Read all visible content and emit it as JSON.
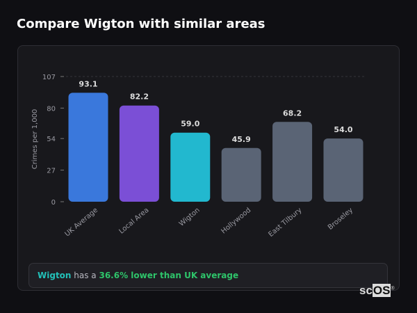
{
  "title": "Compare Wigton with similar areas",
  "chart_data": {
    "type": "bar",
    "categories": [
      "UK Average",
      "Local Area",
      "Wigton",
      "Hollywood",
      "East Tilbury",
      "Broseley"
    ],
    "values": [
      93.1,
      82.2,
      59.0,
      45.9,
      68.2,
      54.0
    ],
    "data_labels": [
      "93.1",
      "82.2",
      "59.0",
      "45.9",
      "68.2",
      "54.0"
    ],
    "colors": [
      "#3a78dc",
      "#7b4fd6",
      "#22b8cf",
      "#5a6475",
      "#5a6475",
      "#5a6475"
    ],
    "ylabel": "Crimes per 1,000",
    "xlabel": "",
    "ylim": [
      0,
      107
    ],
    "yticks": [
      0,
      27,
      54,
      80,
      107
    ],
    "grid": "top dashed line only"
  },
  "summary": {
    "place": "Wigton",
    "middle": " has a ",
    "comparison": "36.6% lower than UK average"
  },
  "logo": {
    "text_a": "sc",
    "text_b": "OS",
    "mark": "®"
  }
}
